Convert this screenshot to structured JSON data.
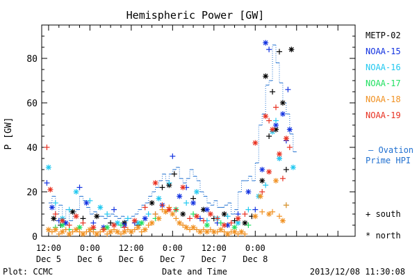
{
  "chart_data": {
    "type": "scatter",
    "title": "Hemispheric Power [GW]",
    "ylabel": "P [GW]",
    "xlabel": "Date and Time",
    "ylim": [
      0,
      95
    ],
    "yticks": [
      0,
      20,
      40,
      60,
      80
    ],
    "xrange_hours": [
      -2,
      89
    ],
    "xticks": [
      {
        "hour": 0,
        "top": "12:00",
        "bottom": "Dec 5"
      },
      {
        "hour": 12,
        "top": "0:00",
        "bottom": "Dec 6"
      },
      {
        "hour": 24,
        "top": "12:00",
        "bottom": "Dec 6"
      },
      {
        "hour": 36,
        "top": "0:00",
        "bottom": "Dec 7"
      },
      {
        "hour": 48,
        "top": "12:00",
        "bottom": "Dec 7"
      },
      {
        "hour": 60,
        "top": "0:00",
        "bottom": "Dec 8"
      }
    ],
    "series": [
      {
        "name": "METP-02",
        "color": "#000000",
        "points": [
          [
            1.5,
            8
          ],
          [
            3.5,
            5
          ],
          [
            7,
            11
          ],
          [
            10,
            8
          ],
          [
            14,
            9
          ],
          [
            18,
            6
          ],
          [
            22,
            6
          ],
          [
            26,
            5
          ],
          [
            30,
            15
          ],
          [
            33,
            22
          ],
          [
            35,
            23
          ],
          [
            36.5,
            28
          ],
          [
            39,
            10
          ],
          [
            42,
            17
          ],
          [
            45,
            12
          ],
          [
            48,
            8
          ],
          [
            51,
            10
          ],
          [
            54,
            7
          ],
          [
            57,
            6
          ],
          [
            59,
            9
          ],
          [
            63,
            72
          ],
          [
            65,
            65
          ],
          [
            66,
            48
          ],
          [
            67,
            83
          ],
          [
            68,
            60
          ],
          [
            69,
            30
          ],
          [
            70.5,
            84
          ],
          [
            64,
            45
          ],
          [
            62,
            25
          ]
        ]
      },
      {
        "name": "NOAA-15",
        "color": "#1030e0",
        "points": [
          [
            -0.5,
            24
          ],
          [
            1,
            13
          ],
          [
            3,
            7
          ],
          [
            5,
            6
          ],
          [
            9,
            22
          ],
          [
            11,
            15
          ],
          [
            13,
            6
          ],
          [
            16,
            4
          ],
          [
            19,
            12
          ],
          [
            22,
            5
          ],
          [
            25,
            6
          ],
          [
            28,
            8
          ],
          [
            31,
            10
          ],
          [
            33,
            14
          ],
          [
            36,
            36
          ],
          [
            38,
            18
          ],
          [
            40,
            22
          ],
          [
            42,
            15
          ],
          [
            44,
            8
          ],
          [
            46,
            12
          ],
          [
            49,
            6
          ],
          [
            52,
            5
          ],
          [
            55,
            10
          ],
          [
            58,
            20
          ],
          [
            60,
            12
          ],
          [
            63,
            87
          ],
          [
            64,
            84
          ],
          [
            66,
            50
          ],
          [
            67,
            35
          ],
          [
            68,
            55
          ],
          [
            69,
            43
          ],
          [
            70,
            48
          ],
          [
            69.5,
            66
          ],
          [
            62,
            30
          ]
        ]
      },
      {
        "name": "NOAA-16",
        "color": "#20c8f0",
        "points": [
          [
            0,
            31
          ],
          [
            2,
            15
          ],
          [
            4,
            8
          ],
          [
            6,
            12
          ],
          [
            8,
            20
          ],
          [
            12,
            16
          ],
          [
            15,
            13
          ],
          [
            17,
            10
          ],
          [
            20,
            6
          ],
          [
            23,
            8
          ],
          [
            26,
            6
          ],
          [
            29,
            10
          ],
          [
            32,
            17
          ],
          [
            35,
            24
          ],
          [
            37,
            12
          ],
          [
            40,
            15
          ],
          [
            43,
            20
          ],
          [
            46,
            7
          ],
          [
            49,
            8
          ],
          [
            52,
            9
          ],
          [
            55,
            6
          ],
          [
            58,
            12
          ],
          [
            61,
            18
          ],
          [
            63,
            23
          ],
          [
            65,
            47
          ],
          [
            66,
            52
          ],
          [
            67,
            35
          ],
          [
            69,
            14
          ],
          [
            71,
            31
          ]
        ]
      },
      {
        "name": "NOAA-17",
        "color": "#20e060",
        "points": [
          [
            2,
            4
          ],
          [
            4,
            5
          ],
          [
            6,
            3
          ],
          [
            9,
            4
          ],
          [
            13,
            3
          ],
          [
            17,
            4
          ],
          [
            21,
            5
          ],
          [
            27,
            6
          ],
          [
            31,
            8
          ],
          [
            37,
            12
          ],
          [
            42,
            10
          ],
          [
            46,
            5
          ],
          [
            50,
            6
          ],
          [
            54,
            4
          ],
          [
            58,
            5
          ]
        ]
      },
      {
        "name": "NOAA-18",
        "color": "#f09020",
        "points": [
          [
            0,
            3
          ],
          [
            1,
            2
          ],
          [
            2,
            3
          ],
          [
            3,
            1
          ],
          [
            4,
            2
          ],
          [
            5,
            3
          ],
          [
            6,
            1
          ],
          [
            7,
            2
          ],
          [
            8,
            3
          ],
          [
            9,
            2
          ],
          [
            10,
            1
          ],
          [
            11,
            2
          ],
          [
            12,
            3
          ],
          [
            13,
            2
          ],
          [
            14,
            1
          ],
          [
            15,
            2
          ],
          [
            16,
            3
          ],
          [
            17,
            1
          ],
          [
            18,
            2
          ],
          [
            19,
            3
          ],
          [
            20,
            2
          ],
          [
            21,
            1
          ],
          [
            22,
            2
          ],
          [
            23,
            3
          ],
          [
            24,
            2
          ],
          [
            25,
            3
          ],
          [
            26,
            4
          ],
          [
            27,
            2
          ],
          [
            28,
            3
          ],
          [
            29,
            5
          ],
          [
            30,
            6
          ],
          [
            31,
            10
          ],
          [
            32,
            8
          ],
          [
            33,
            12
          ],
          [
            34,
            11
          ],
          [
            35,
            13
          ],
          [
            36,
            10
          ],
          [
            37,
            8
          ],
          [
            38,
            6
          ],
          [
            39,
            5
          ],
          [
            40,
            4
          ],
          [
            41,
            3
          ],
          [
            42,
            4
          ],
          [
            43,
            3
          ],
          [
            44,
            2
          ],
          [
            45,
            3
          ],
          [
            46,
            2
          ],
          [
            47,
            3
          ],
          [
            48,
            2
          ],
          [
            49,
            2
          ],
          [
            50,
            3
          ],
          [
            51,
            2
          ],
          [
            52,
            1
          ],
          [
            53,
            2
          ],
          [
            54,
            2
          ],
          [
            55,
            1
          ],
          [
            56,
            2
          ],
          [
            57,
            1
          ],
          [
            60,
            9
          ],
          [
            62,
            11
          ],
          [
            64,
            10
          ],
          [
            65,
            11
          ],
          [
            66,
            25
          ],
          [
            67,
            9
          ],
          [
            68,
            7
          ],
          [
            69,
            14
          ],
          [
            61.5,
            18
          ]
        ]
      },
      {
        "name": "NOAA-19",
        "color": "#e83020",
        "points": [
          [
            -0.5,
            40
          ],
          [
            0.5,
            21
          ],
          [
            2,
            10
          ],
          [
            4,
            7
          ],
          [
            6,
            5
          ],
          [
            8,
            9
          ],
          [
            10,
            6
          ],
          [
            13,
            4
          ],
          [
            16,
            3
          ],
          [
            19,
            5
          ],
          [
            22,
            4
          ],
          [
            25,
            7
          ],
          [
            28,
            13
          ],
          [
            31,
            24
          ],
          [
            33,
            14
          ],
          [
            35,
            12
          ],
          [
            37,
            12
          ],
          [
            39,
            22
          ],
          [
            41,
            8
          ],
          [
            43,
            9
          ],
          [
            45,
            7
          ],
          [
            47,
            10
          ],
          [
            49,
            8
          ],
          [
            51,
            5
          ],
          [
            53,
            6
          ],
          [
            55,
            8
          ],
          [
            57,
            10
          ],
          [
            60,
            42
          ],
          [
            62,
            20
          ],
          [
            63,
            54
          ],
          [
            64,
            52
          ],
          [
            65,
            48
          ],
          [
            66,
            58
          ],
          [
            67,
            37
          ],
          [
            68,
            26
          ],
          [
            69,
            44
          ],
          [
            70,
            40
          ],
          [
            64,
            29
          ]
        ]
      }
    ],
    "ovation": {
      "name": "Ovation Prime HPI",
      "color": "#2070d0",
      "steps": [
        [
          0,
          15
        ],
        [
          1,
          18
        ],
        [
          2,
          10
        ],
        [
          3,
          14
        ],
        [
          4,
          8
        ],
        [
          5,
          12
        ],
        [
          6,
          7
        ],
        [
          7,
          9
        ],
        [
          8,
          12
        ],
        [
          9,
          18
        ],
        [
          10,
          16
        ],
        [
          11,
          13
        ],
        [
          12,
          10
        ],
        [
          13,
          11
        ],
        [
          14,
          9
        ],
        [
          15,
          9
        ],
        [
          16,
          8
        ],
        [
          17,
          9
        ],
        [
          18,
          10
        ],
        [
          19,
          9
        ],
        [
          20,
          8
        ],
        [
          21,
          9
        ],
        [
          22,
          7
        ],
        [
          23,
          8
        ],
        [
          24,
          9
        ],
        [
          25,
          10
        ],
        [
          26,
          12
        ],
        [
          27,
          14
        ],
        [
          28,
          15
        ],
        [
          29,
          18
        ],
        [
          30,
          20
        ],
        [
          31,
          22
        ],
        [
          32,
          25
        ],
        [
          33,
          28
        ],
        [
          34,
          25
        ],
        [
          35,
          28
        ],
        [
          36,
          30
        ],
        [
          37,
          31
        ],
        [
          38,
          26
        ],
        [
          39,
          24
        ],
        [
          40,
          26
        ],
        [
          41,
          30
        ],
        [
          42,
          27
        ],
        [
          43,
          25
        ],
        [
          44,
          20
        ],
        [
          45,
          18
        ],
        [
          46,
          15
        ],
        [
          47,
          14
        ],
        [
          48,
          16
        ],
        [
          49,
          13
        ],
        [
          50,
          13
        ],
        [
          51,
          14
        ],
        [
          52,
          15
        ],
        [
          53,
          10
        ],
        [
          54,
          12
        ],
        [
          55,
          20
        ],
        [
          56,
          25
        ],
        [
          57,
          25
        ],
        [
          58,
          27
        ],
        [
          59,
          25
        ],
        [
          60,
          33
        ],
        [
          61,
          50
        ],
        [
          62,
          55
        ],
        [
          63,
          68
        ],
        [
          64,
          70
        ],
        [
          65,
          86
        ],
        [
          66,
          78
        ],
        [
          67,
          69
        ],
        [
          68,
          60
        ],
        [
          69,
          55
        ],
        [
          70,
          46
        ],
        [
          71,
          38
        ],
        [
          72,
          38
        ]
      ]
    }
  },
  "legend": {
    "entries": [
      "METP-02",
      "NOAA-15",
      "NOAA-16",
      "NOAA-17",
      "NOAA-18",
      "NOAA-19"
    ],
    "colors": [
      "#000000",
      "#1030e0",
      "#20c8f0",
      "#20e060",
      "#f09020",
      "#e83020"
    ],
    "ovation_line1": "– Ovation",
    "ovation_line2": "Prime HPI",
    "south_label": "+ south",
    "north_label": "* north"
  },
  "footer": {
    "left": "Plot: CCMC",
    "center": "Date and Time",
    "right": "2013/12/08 11:30:08"
  }
}
